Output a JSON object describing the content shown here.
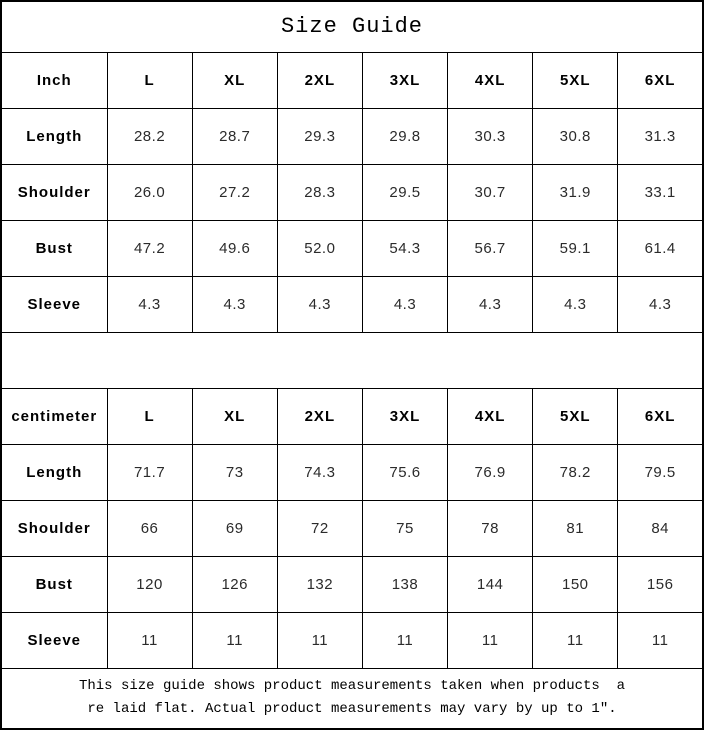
{
  "title": "Size Guide",
  "colors": {
    "border": "#000000",
    "background": "#ffffff",
    "label_text": "#000000",
    "value_text": "#2b2b2b"
  },
  "chart_data": [
    {
      "type": "table",
      "unit": "Inch",
      "columns": [
        "L",
        "XL",
        "2XL",
        "3XL",
        "4XL",
        "5XL",
        "6XL"
      ],
      "rows": [
        {
          "label": "Length",
          "values": [
            "28.2",
            "28.7",
            "29.3",
            "29.8",
            "30.3",
            "30.8",
            "31.3"
          ]
        },
        {
          "label": "Shoulder",
          "values": [
            "26.0",
            "27.2",
            "28.3",
            "29.5",
            "30.7",
            "31.9",
            "33.1"
          ]
        },
        {
          "label": "Bust",
          "values": [
            "47.2",
            "49.6",
            "52.0",
            "54.3",
            "56.7",
            "59.1",
            "61.4"
          ]
        },
        {
          "label": "Sleeve",
          "values": [
            "4.3",
            "4.3",
            "4.3",
            "4.3",
            "4.3",
            "4.3",
            "4.3"
          ]
        }
      ]
    },
    {
      "type": "table",
      "unit": "centimeter",
      "columns": [
        "L",
        "XL",
        "2XL",
        "3XL",
        "4XL",
        "5XL",
        "6XL"
      ],
      "rows": [
        {
          "label": "Length",
          "values": [
            "71.7",
            "73",
            "74.3",
            "75.6",
            "76.9",
            "78.2",
            "79.5"
          ]
        },
        {
          "label": "Shoulder",
          "values": [
            "66",
            "69",
            "72",
            "75",
            "78",
            "81",
            "84"
          ]
        },
        {
          "label": "Bust",
          "values": [
            "120",
            "126",
            "132",
            "138",
            "144",
            "150",
            "156"
          ]
        },
        {
          "label": "Sleeve",
          "values": [
            "11",
            "11",
            "11",
            "11",
            "11",
            "11",
            "11"
          ]
        }
      ]
    }
  ],
  "footer": {
    "line1": "This size guide shows product measurements taken when products  a",
    "line2": "re laid flat. Actual product measurements may vary by up to 1″."
  }
}
